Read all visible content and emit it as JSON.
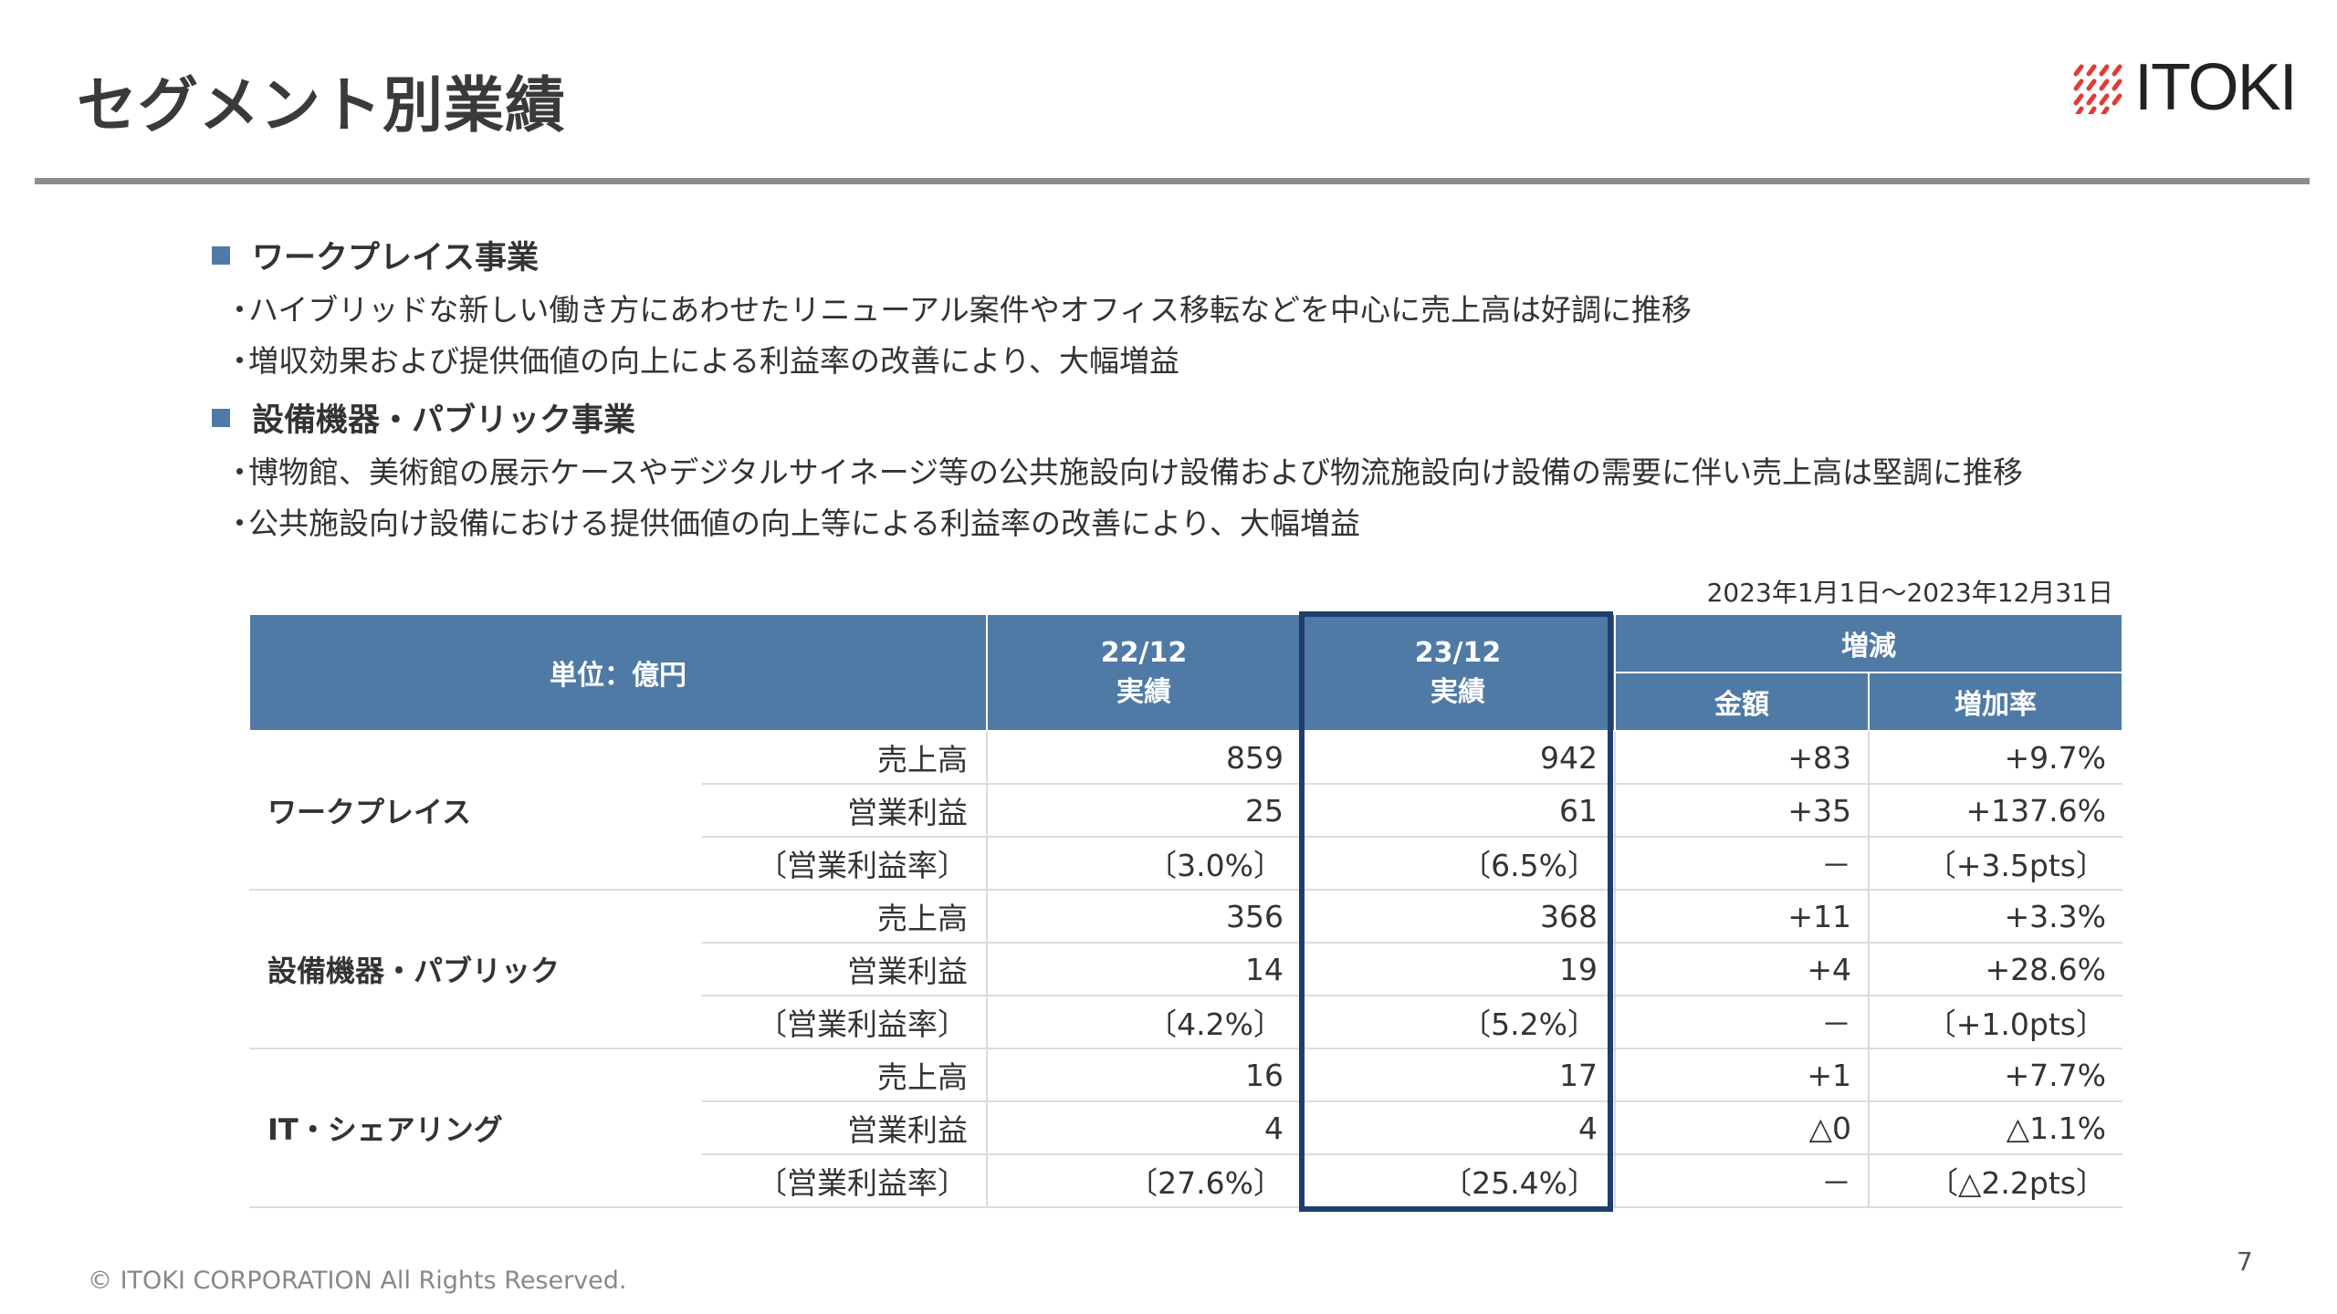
{
  "header": {
    "title": "セグメント別業績",
    "logo_text": "ITOKI"
  },
  "sections": [
    {
      "heading": "ワークプレイス事業",
      "bullets": [
        "ハイブリッドな新しい働き方にあわせたリニューアル案件やオフィス移転などを中心に売上高は好調に推移",
        "増収効果および提供価値の向上による利益率の改善により、大幅増益"
      ]
    },
    {
      "heading": "設備機器・パブリック事業",
      "bullets": [
        "博物館、美術館の展示ケースやデジタルサイネージ等の公共施設向け設備および物流施設向け設備の需要に伴い売上高は堅調に推移",
        "公共施設向け設備における提供価値の向上等による利益率の改善により、大幅増益"
      ]
    }
  ],
  "bullet_marker": "・",
  "period": "2023年1月1日～2023年12月31日",
  "table": {
    "unit_label": "単位：億円",
    "col_prev": "22/12",
    "col_prev_sub": "実績",
    "col_curr": "23/12",
    "col_curr_sub": "実績",
    "col_change": "増減",
    "col_amount": "金額",
    "col_rate": "増加率",
    "segments": [
      {
        "name": "ワークプレイス",
        "rows": [
          {
            "item": "売上高",
            "prev": "859",
            "curr": "942",
            "amount": "+83",
            "rate": "+9.7%"
          },
          {
            "item": "営業利益",
            "prev": "25",
            "curr": "61",
            "amount": "+35",
            "rate": "+137.6%"
          },
          {
            "item": "〔営業利益率〕",
            "prev": "〔3.0%〕",
            "curr": "〔6.5%〕",
            "amount": "－",
            "rate": "〔+3.5pts〕"
          }
        ]
      },
      {
        "name": "設備機器・パブリック",
        "rows": [
          {
            "item": "売上高",
            "prev": "356",
            "curr": "368",
            "amount": "+11",
            "rate": "+3.3%"
          },
          {
            "item": "営業利益",
            "prev": "14",
            "curr": "19",
            "amount": "+4",
            "rate": "+28.6%"
          },
          {
            "item": "〔営業利益率〕",
            "prev": "〔4.2%〕",
            "curr": "〔5.2%〕",
            "amount": "－",
            "rate": "〔+1.0pts〕"
          }
        ]
      },
      {
        "name": "IT・シェアリング",
        "rows": [
          {
            "item": "売上高",
            "prev": "16",
            "curr": "17",
            "amount": "+1",
            "rate": "+7.7%"
          },
          {
            "item": "営業利益",
            "prev": "4",
            "curr": "4",
            "amount": "△0",
            "rate": "△1.1%"
          },
          {
            "item": "〔営業利益率〕",
            "prev": "〔27.6%〕",
            "curr": "〔25.4%〕",
            "amount": "－",
            "rate": "〔△2.2pts〕"
          }
        ]
      }
    ]
  },
  "footer": {
    "copyright": "© ITOKI CORPORATION All Rights Reserved.",
    "page_number": "7"
  },
  "colors": {
    "header_blue": "#4f7aa6",
    "highlight_navy": "#1f3e6e",
    "logo_red": "#e23b35"
  }
}
